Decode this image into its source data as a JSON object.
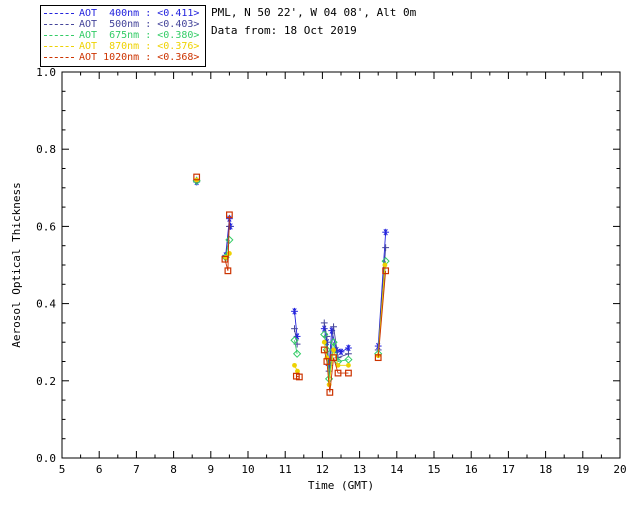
{
  "header": {
    "site_line": "PML, N 50 22', W 04 08', Alt 0m",
    "date_line": "Data from: 18 Oct 2019"
  },
  "chart_data": {
    "type": "scatter",
    "title": "",
    "xlabel": "Time (GMT)",
    "ylabel": "Aerosol Optical Thickness",
    "xlim": [
      5,
      20
    ],
    "ylim": [
      0.0,
      1.0
    ],
    "grid": false,
    "legend_position": "top-left",
    "xticks": [
      5,
      6,
      7,
      8,
      9,
      10,
      11,
      12,
      13,
      14,
      15,
      16,
      17,
      18,
      19,
      20
    ],
    "xtick_labels": [
      "5",
      "6",
      "7",
      "8",
      "9",
      "10",
      "11",
      "12",
      "13",
      "14",
      "15",
      "16",
      "17",
      "18",
      "19",
      "20"
    ],
    "yticks": [
      0.0,
      0.2,
      0.4,
      0.6,
      0.8,
      1.0
    ],
    "ytick_labels": [
      "0.0",
      "0.2",
      "0.4",
      "0.6",
      "0.8",
      "1.0"
    ],
    "series": [
      {
        "name": "AOT 400nm",
        "legend_text": "AOT  400nm : <0.411>",
        "mean": "<0.411>",
        "color": "#2323dd",
        "symbol": "asterisk",
        "points": [
          [
            8.62,
            0.715
          ],
          [
            9.4,
            0.525
          ],
          [
            9.5,
            0.62
          ],
          [
            9.53,
            0.6
          ],
          [
            11.25,
            0.38
          ],
          [
            11.32,
            0.315
          ],
          [
            12.05,
            0.335
          ],
          [
            12.12,
            0.3
          ],
          [
            12.18,
            0.24
          ],
          [
            12.25,
            0.33
          ],
          [
            12.38,
            0.28
          ],
          [
            12.5,
            0.275
          ],
          [
            12.7,
            0.285
          ],
          [
            13.5,
            0.29
          ],
          [
            13.7,
            0.585
          ]
        ]
      },
      {
        "name": "AOT 500nm",
        "legend_text": "AOT  500nm : <0.403>",
        "mean": "<0.403>",
        "color": "#44449a",
        "symbol": "plus",
        "points": [
          [
            8.62,
            0.72
          ],
          [
            9.4,
            0.52
          ],
          [
            9.5,
            0.6
          ],
          [
            11.25,
            0.335
          ],
          [
            11.32,
            0.295
          ],
          [
            12.05,
            0.35
          ],
          [
            12.12,
            0.315
          ],
          [
            12.18,
            0.225
          ],
          [
            12.3,
            0.34
          ],
          [
            12.42,
            0.26
          ],
          [
            12.7,
            0.27
          ],
          [
            13.5,
            0.28
          ],
          [
            13.7,
            0.545
          ]
        ]
      },
      {
        "name": "AOT 675nm",
        "legend_text": "AOT  675nm : <0.380>",
        "mean": "<0.380>",
        "color": "#33cc66",
        "symbol": "diamond",
        "points": [
          [
            8.62,
            0.718
          ],
          [
            9.4,
            0.52
          ],
          [
            9.5,
            0.565
          ],
          [
            11.25,
            0.305
          ],
          [
            11.32,
            0.27
          ],
          [
            12.05,
            0.32
          ],
          [
            12.12,
            0.28
          ],
          [
            12.18,
            0.205
          ],
          [
            12.3,
            0.3
          ],
          [
            12.42,
            0.25
          ],
          [
            12.7,
            0.255
          ],
          [
            13.5,
            0.27
          ],
          [
            13.7,
            0.51
          ]
        ]
      },
      {
        "name": "AOT 870nm",
        "legend_text": "AOT  870nm : <0.376>",
        "mean": "<0.376>",
        "color": "#eed202",
        "symbol": "circle",
        "points": [
          [
            8.62,
            0.72
          ],
          [
            9.4,
            0.52
          ],
          [
            9.5,
            0.53
          ],
          [
            11.25,
            0.24
          ],
          [
            11.33,
            0.225
          ],
          [
            12.05,
            0.3
          ],
          [
            12.12,
            0.26
          ],
          [
            12.18,
            0.19
          ],
          [
            12.3,
            0.28
          ],
          [
            12.42,
            0.24
          ],
          [
            12.7,
            0.24
          ],
          [
            13.5,
            0.265
          ],
          [
            13.68,
            0.5
          ]
        ]
      },
      {
        "name": "AOT 1020nm",
        "legend_text": "AOT 1020nm : <0.368>",
        "mean": "<0.368>",
        "color": "#cc3300",
        "symbol": "square",
        "points": [
          [
            8.62,
            0.728
          ],
          [
            9.38,
            0.515
          ],
          [
            9.46,
            0.485
          ],
          [
            9.5,
            0.63
          ],
          [
            11.3,
            0.212
          ],
          [
            11.38,
            0.21
          ],
          [
            12.05,
            0.28
          ],
          [
            12.12,
            0.25
          ],
          [
            12.2,
            0.17
          ],
          [
            12.3,
            0.26
          ],
          [
            12.42,
            0.22
          ],
          [
            12.7,
            0.22
          ],
          [
            13.5,
            0.26
          ],
          [
            13.7,
            0.485
          ]
        ]
      }
    ]
  }
}
